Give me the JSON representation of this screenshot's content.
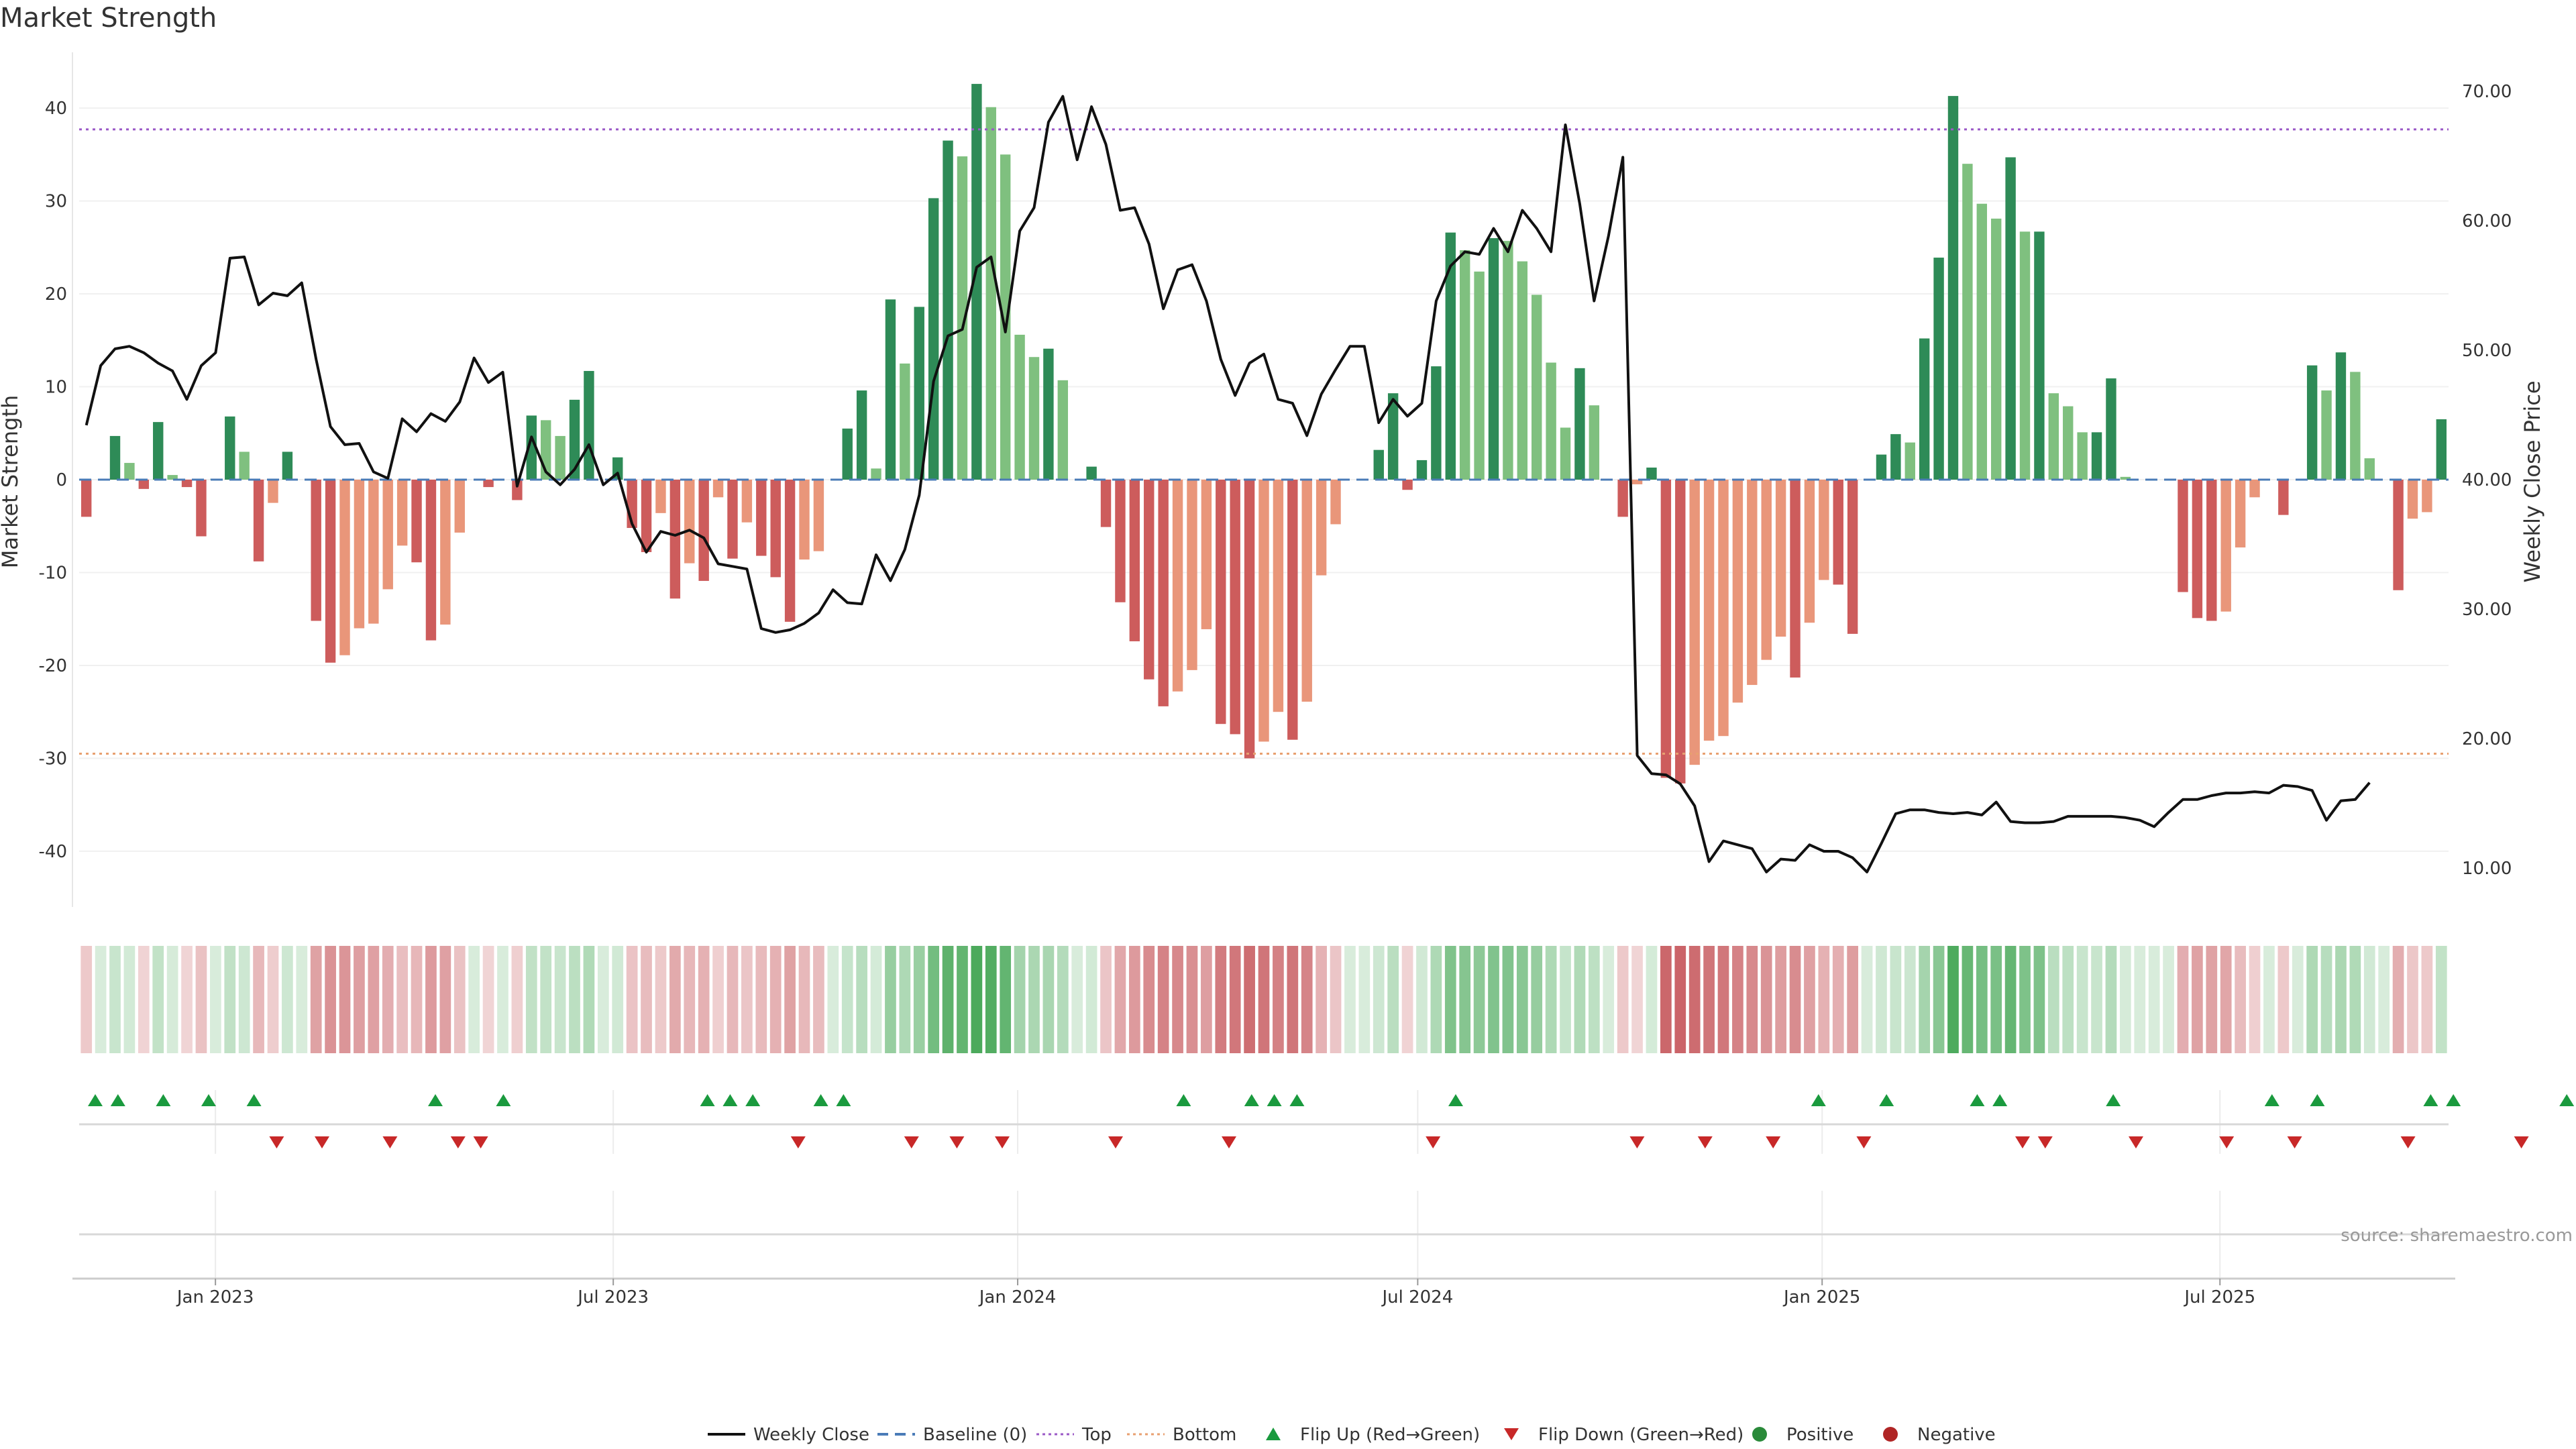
{
  "chart_data": {
    "type": "bar",
    "title": "Market Strength",
    "ylabel": "Market Strength",
    "y2label": "Weekly Close Price",
    "ylim": [
      -46,
      46
    ],
    "y2lim": [
      7,
      73
    ],
    "yticks": [
      -40,
      -30,
      -20,
      -10,
      0,
      10,
      20,
      30,
      40
    ],
    "y2ticks": [
      "10.00",
      "20.00",
      "30.00",
      "40.00",
      "50.00",
      "60.00",
      "70.00"
    ],
    "top_line": 37.7,
    "bottom_line": -29.5,
    "baseline": 0,
    "x_range": [
      "2022-10-31",
      "2025-10-13"
    ],
    "xticks": [
      {
        "label": "Jan 2023",
        "date": "2023-01-01"
      },
      {
        "label": "Jul 2023",
        "date": "2023-07-01"
      },
      {
        "label": "Jan 2024",
        "date": "2024-01-01"
      },
      {
        "label": "Jul 2024",
        "date": "2024-07-01"
      },
      {
        "label": "Jan 2025",
        "date": "2025-01-01"
      },
      {
        "label": "Jul 2025",
        "date": "2025-07-01"
      }
    ],
    "strength": [
      -4,
      0,
      4.7,
      1.8,
      -1,
      6.2,
      0.5,
      -0.8,
      -6.1,
      0.1,
      6.8,
      3,
      -8.8,
      -2.5,
      3,
      0,
      -15.2,
      -19.7,
      -18.9,
      -16,
      -15.5,
      -11.8,
      -7.1,
      -8.9,
      -17.3,
      -15.6,
      -5.7,
      0,
      -0.8,
      0,
      -2.2,
      6.9,
      6.4,
      4.7,
      8.6,
      11.7,
      0,
      2.4,
      -5.2,
      -7.8,
      -3.6,
      -12.8,
      -9,
      -10.9,
      -1.9,
      -8.5,
      -4.6,
      -8.2,
      -10.5,
      -15.3,
      -8.6,
      -7.7,
      0,
      5.5,
      9.6,
      1.2,
      19.4,
      12.5,
      18.6,
      30.3,
      36.5,
      34.8,
      42.6,
      40.1,
      35,
      15.6,
      13.2,
      14.1,
      10.7,
      0,
      1.4,
      -5.1,
      -13.2,
      -17.4,
      -21.5,
      -24.4,
      -22.8,
      -20.5,
      -16.1,
      -26.3,
      -27.4,
      -30,
      -28.2,
      -25,
      -28,
      -23.9,
      -10.3,
      -4.8,
      0,
      0,
      3.2,
      9.3,
      -1.1,
      2.1,
      12.2,
      26.6,
      24.7,
      22.4,
      26,
      25.7,
      23.5,
      19.9,
      12.6,
      5.6,
      12,
      8,
      0,
      -4,
      -0.5,
      1.3,
      -32.1,
      -32.7,
      -30.7,
      -28.1,
      -27.6,
      -24,
      -22.1,
      -19.4,
      -16.9,
      -21.3,
      -15.4,
      -10.8,
      -11.3,
      -16.6,
      0,
      2.7,
      4.9,
      4,
      15.2,
      23.9,
      41.3,
      34,
      29.7,
      28.1,
      34.7,
      26.7,
      26.7,
      9.3,
      7.9,
      5.1,
      5.1,
      10.9,
      0.3,
      0,
      0,
      0,
      -12.1,
      -14.9,
      -15.2,
      -14.2,
      -7.3,
      -1.9,
      0,
      -3.8,
      0,
      12.3,
      9.6,
      13.7,
      11.6,
      2.3,
      0,
      -11.9,
      -4.2,
      -3.5,
      6.5
    ],
    "weekly_close": [
      44.2,
      48.8,
      50.1,
      50.3,
      49.8,
      49,
      48.4,
      46.2,
      48.8,
      49.8,
      57.1,
      57.2,
      53.5,
      54.4,
      54.2,
      55.2,
      49.3,
      44.1,
      42.7,
      42.8,
      40.6,
      40.1,
      44.7,
      43.7,
      45.1,
      44.5,
      46,
      49.4,
      47.5,
      48.3,
      39.5,
      43.3,
      40.6,
      39.6,
      40.8,
      42.7,
      39.6,
      40.5,
      36.6,
      34.4,
      36,
      35.7,
      36.1,
      35.5,
      33.5,
      33.3,
      33.1,
      28.5,
      28.2,
      28.4,
      28.9,
      29.7,
      31.5,
      30.5,
      30.4,
      34.2,
      32.2,
      34.6,
      38.8,
      47.6,
      51.1,
      51.6,
      56.4,
      57.2,
      51.4,
      59.2,
      61,
      67.6,
      69.6,
      64.7,
      68.8,
      65.9,
      60.8,
      61,
      58.2,
      53.2,
      56.2,
      56.6,
      53.8,
      49.3,
      46.5,
      49,
      49.7,
      46.2,
      45.9,
      43.4,
      46.6,
      48.5,
      50.3,
      50.3,
      44.4,
      46.2,
      44.9,
      45.9,
      53.8,
      56.5,
      57.6,
      57.4,
      59.4,
      57.6,
      60.8,
      59.4,
      57.6,
      67.4,
      61.3,
      53.8,
      58.8,
      64.9,
      18.7,
      17.3,
      17.2,
      16.5,
      14.8,
      10.5,
      12.1,
      11.8,
      11.5,
      9.7,
      10.7,
      10.6,
      11.8,
      11.3,
      11.3,
      10.8,
      9.7,
      11.9,
      14.2,
      14.5,
      14.5,
      14.3,
      14.2,
      14.3,
      14.1,
      15.1,
      13.6,
      13.5,
      13.5,
      13.6,
      14,
      14,
      14,
      14,
      13.9,
      13.7,
      13.2,
      14.3,
      15.3,
      15.3,
      15.6,
      15.8,
      15.8,
      15.9,
      15.8,
      16.4,
      16.3,
      16,
      13.7,
      15.2,
      15.3,
      16.6
    ],
    "flips_up": [
      0,
      1,
      3,
      5,
      7,
      15,
      18,
      27,
      28,
      29,
      32,
      33,
      48,
      51,
      52,
      53,
      60,
      76,
      79,
      83,
      84,
      89,
      96,
      98,
      103,
      104,
      109
    ],
    "flips_down": [
      8,
      10,
      13,
      16,
      17,
      31,
      36,
      38,
      40,
      45,
      50,
      59,
      68,
      71,
      74,
      78,
      85,
      86,
      90,
      94,
      97,
      102,
      107
    ],
    "legend": [
      {
        "label": "Weekly Close",
        "kind": "line",
        "color": "#111111"
      },
      {
        "label": "Baseline (0)",
        "kind": "dash",
        "color": "#4a7bb7"
      },
      {
        "label": "Top",
        "kind": "dot",
        "color": "#9b59c7"
      },
      {
        "label": "Bottom",
        "kind": "dot",
        "color": "#e8a070"
      },
      {
        "label": "Flip Up (Red→Green)",
        "kind": "up",
        "color": "#1a9a3e"
      },
      {
        "label": "Flip Down (Green→Red)",
        "kind": "down",
        "color": "#c82828"
      },
      {
        "label": "Positive",
        "kind": "circle",
        "color": "#2a8a3a"
      },
      {
        "label": "Negative",
        "kind": "circle",
        "color": "#b02525"
      }
    ]
  },
  "source_note": "source: sharemaestro.com",
  "colors": {
    "pos_dark": "#2e8b57",
    "pos_light": "#7fc07f",
    "neg_dark": "#cd5c5c",
    "neg_light": "#e9967a",
    "heat_pos": "#4caa5c",
    "heat_neg": "#c0454a"
  }
}
